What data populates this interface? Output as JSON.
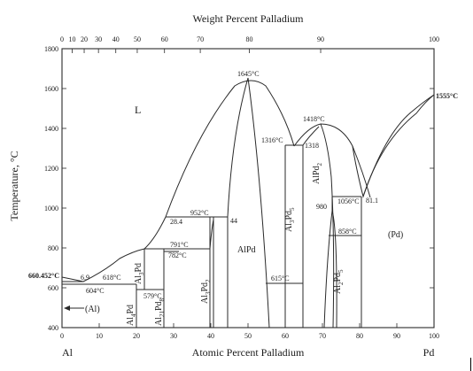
{
  "axes": {
    "top_title": "Weight Percent Palladium",
    "y_title": "Temperature, °C",
    "x_title": "Atomic Percent Palladium",
    "left_element": "Al",
    "right_element": "Pd",
    "top_ticks": [
      "0",
      "10",
      "20",
      "30",
      "40",
      "50",
      "60",
      "70",
      "80",
      "90",
      "100"
    ],
    "bottom_ticks": [
      "0",
      "10",
      "20",
      "30",
      "40",
      "50",
      "60",
      "70",
      "80",
      "90",
      "100"
    ],
    "y_ticks": [
      "1800",
      "1600",
      "1400",
      "1200",
      "1000",
      "800",
      "600",
      "400"
    ]
  },
  "phases": {
    "liquid": "L",
    "al_solid": "(Al)",
    "pd_solid": "(Pd)",
    "alpd": "AlPd",
    "al4pd": {
      "a": "Al",
      "b": "4",
      "c": "Pd"
    },
    "al3pd_l": {
      "a": "Al",
      "b": "3",
      "c": "Pd"
    },
    "al21pd8": {
      "a": "Al",
      "b": "21",
      "c": "Pd",
      "d": "8"
    },
    "al3pd2": {
      "a": "Al",
      "b": "3",
      "c": "Pd",
      "d": "2"
    },
    "al3pd5": {
      "a": "Al",
      "b": "3",
      "c": "Pd",
      "d": "5"
    },
    "alpd2": {
      "a": "AlPd",
      "b": "2"
    },
    "al2pd5": {
      "a": "Al",
      "b": "2",
      "c": "Pd",
      "d": "5"
    }
  },
  "annotations": {
    "t660": "660.452°C",
    "c69": "6.9",
    "t618": "618°C",
    "t604": "604°C",
    "t579": "579°C",
    "c284": "28.4",
    "t952": "952°C",
    "c44": "44",
    "t791": "791°C",
    "t782": "782°C",
    "t1645": "1645°C",
    "t1418": "1418°C",
    "t1316": "1316°C",
    "c1318": "1318",
    "t1555": "1555°C",
    "t1056": "1056°C",
    "c811": "81.1",
    "c980": "980",
    "t858": "858°C",
    "t615": "615°C"
  },
  "chart_data": {
    "type": "phase-diagram",
    "x_unit": "Atomic Percent Palladium",
    "y_unit": "Temperature, °C",
    "xlim": [
      0,
      100
    ],
    "ylim": [
      400,
      1800
    ],
    "invariants": [
      {
        "x": 0,
        "y": 660.452
      },
      {
        "x": 6.9,
        "y": 618
      },
      {
        "x": 14.5,
        "y": 604
      },
      {
        "x": 25,
        "y": 579
      },
      {
        "x": 28.4,
        "y": 952
      },
      {
        "x": 44,
        "y": 952
      },
      {
        "x": 28.4,
        "y": 791
      },
      {
        "x": 31,
        "y": 782
      },
      {
        "x": 50,
        "y": 1645
      },
      {
        "x": 67.5,
        "y": 1418
      },
      {
        "x": 62,
        "y": 1316
      },
      {
        "x": 65,
        "y": 1318
      },
      {
        "x": 100,
        "y": 1555
      },
      {
        "x": 78,
        "y": 1056
      },
      {
        "x": 81.1,
        "y": 1056
      },
      {
        "x": 71.5,
        "y": 980
      },
      {
        "x": 72,
        "y": 858
      },
      {
        "x": 62,
        "y": 615
      }
    ]
  }
}
